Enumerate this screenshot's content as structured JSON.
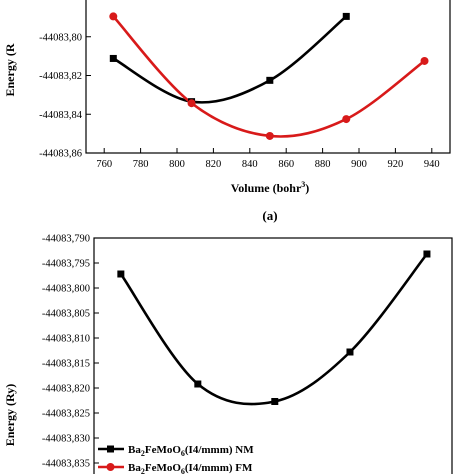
{
  "chart_data": [
    {
      "type": "line",
      "panel": "(a)",
      "xlabel": "Volume (bohr",
      "xlabel_sup": "3",
      "xlabel_end": ")",
      "ylabel": "Energy (R",
      "xlim": [
        750,
        950
      ],
      "ylim": [
        -44083.86,
        -44083.78
      ],
      "x_ticks": [
        "760",
        "780",
        "800",
        "820",
        "840",
        "860",
        "880",
        "900",
        "920",
        "940"
      ],
      "y_ticks": [
        "-44083,80",
        "-44083,82",
        "-44083,84",
        "-44083,86"
      ],
      "series": [
        {
          "color": "#000000",
          "marker": "square",
          "x": [
            765,
            808,
            851,
            893
          ],
          "y": [
            -44083.8112,
            -44083.8335,
            -44083.8225,
            -44083.7895
          ]
        },
        {
          "color": "#d81a1a",
          "marker": "circle",
          "x": [
            765,
            808,
            851,
            893,
            936
          ],
          "y": [
            -44083.7895,
            -44083.8343,
            -44083.8512,
            -44083.8425,
            -44083.8125
          ]
        }
      ]
    },
    {
      "type": "line",
      "ylabel": "Energy (Ry)",
      "xlim": [
        750,
        950
      ],
      "ylim": [
        -44083.84,
        -44083.79
      ],
      "y_ticks": [
        "-44083,790",
        "-44083,795",
        "-44083,800",
        "-44083,805",
        "-44083,810",
        "-44083,815",
        "-44083,820",
        "-44083,825",
        "-44083,830",
        "-44083,835"
      ],
      "legend": [
        {
          "formula": "Ba",
          "sub1": "2",
          "mid": "FeMoO",
          "sub2": "6",
          "rest": "(I4/mmm) NM",
          "color": "#000000",
          "marker": "square"
        },
        {
          "formula": "Ba",
          "sub1": "2",
          "mid": "FeMoO",
          "sub2": "6",
          "rest": "(I4/mmm) FM",
          "color": "#d81a1a",
          "marker": "circle"
        }
      ],
      "series": [
        {
          "color": "#000000",
          "marker": "square",
          "x": [
            765,
            808,
            851,
            893,
            936
          ],
          "y": [
            -44083.7972,
            -44083.8192,
            -44083.8227,
            -44083.8128,
            -44083.7932
          ]
        }
      ]
    }
  ]
}
